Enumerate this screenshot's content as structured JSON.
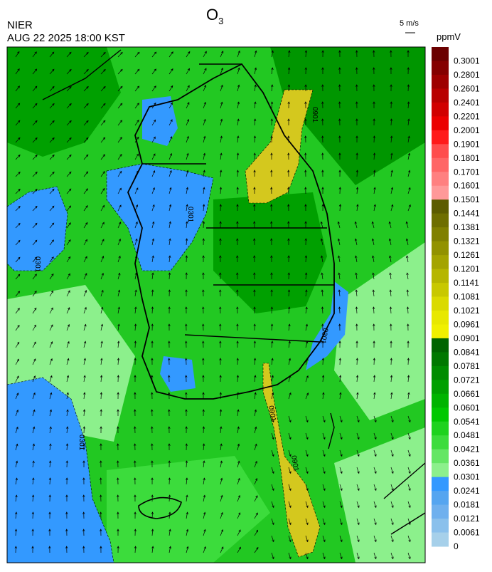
{
  "header": {
    "title": "O",
    "title_subscript": "3",
    "agency": "NIER",
    "timestamp": "AUG 22 2025 18:00 KST",
    "wind_scale": "5 m/s"
  },
  "colorbar": {
    "unit": "ppmV",
    "labels": [
      0.3001,
      0.2801,
      0.2601,
      0.2401,
      0.2201,
      0.2001,
      0.1901,
      0.1801,
      0.1701,
      0.1601,
      0.1501,
      0.1441,
      0.1381,
      0.1321,
      0.1261,
      0.1201,
      0.1141,
      0.1081,
      0.1021,
      0.0961,
      0.0901,
      0.0841,
      0.0781,
      0.0721,
      0.0661,
      0.0601,
      0.0541,
      0.0481,
      0.0421,
      0.0361,
      0.0301,
      0.0241,
      0.0181,
      0.0121,
      0.0061,
      0
    ],
    "colors": [
      "#6b0000",
      "#850000",
      "#9e0000",
      "#b80000",
      "#d10000",
      "#eb0000",
      "#ff1a1a",
      "#ff4d4d",
      "#ff6666",
      "#ff8080",
      "#ff9999",
      "#5c5c00",
      "#6e6e00",
      "#808000",
      "#929200",
      "#a4a400",
      "#b6b600",
      "#c8c800",
      "#dada00",
      "#e8e800",
      "#f0f000",
      "#006400",
      "#007800",
      "#008c00",
      "#00a000",
      "#00b400",
      "#00c800",
      "#1ed21e",
      "#3cdc3c",
      "#64e664",
      "#8cf08c",
      "#3399ff",
      "#55a5f0",
      "#6fb0ee",
      "#8ac0ec",
      "#a6d0ea"
    ]
  },
  "map": {
    "contour_labels": [
      "0301",
      "0901",
      "0301",
      "0901",
      "0301",
      "0901",
      "0301"
    ]
  }
}
